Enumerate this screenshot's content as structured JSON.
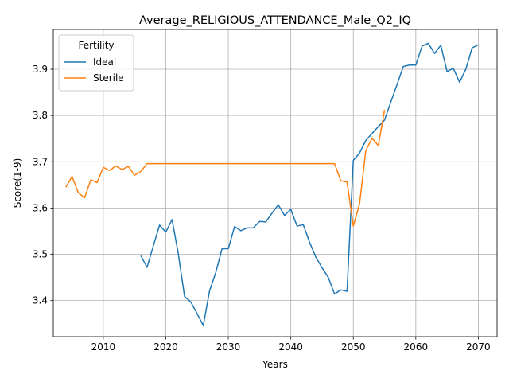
{
  "chart_data": {
    "type": "line",
    "title": "Average_RELIGIOUS_ATTENDANCE_Male_Q2_IQ",
    "xlabel": "Years",
    "ylabel": "Score(1-9)",
    "xlim": [
      2002,
      2073
    ],
    "ylim": [
      3.322,
      3.986
    ],
    "xticks": [
      2010,
      2020,
      2030,
      2040,
      2050,
      2060,
      2070
    ],
    "yticks": [
      3.4,
      3.5,
      3.6,
      3.7,
      3.8,
      3.9
    ],
    "ytick_labels": [
      "3.4",
      "3.5",
      "3.6",
      "3.7",
      "3.8",
      "3.9"
    ],
    "grid": true,
    "legend": {
      "title": "Fertility",
      "placement": "top-left"
    },
    "series": [
      {
        "name": "Ideal",
        "color": "#1f77b4",
        "x": [
          2016,
          2017,
          2018,
          2019,
          2020,
          2021,
          2022,
          2023,
          2024,
          2025,
          2026,
          2027,
          2028,
          2029,
          2030,
          2031,
          2032,
          2033,
          2034,
          2035,
          2036,
          2037,
          2038,
          2039,
          2040,
          2041,
          2042,
          2043,
          2044,
          2045,
          2046,
          2047,
          2048,
          2049,
          2050,
          2051,
          2052,
          2053,
          2054,
          2055,
          2056,
          2057,
          2058,
          2059,
          2060,
          2061,
          2062,
          2063,
          2064,
          2065,
          2066,
          2067,
          2068,
          2069,
          2070
        ],
        "y": [
          3.497,
          3.472,
          3.518,
          3.563,
          3.548,
          3.575,
          3.501,
          3.409,
          3.397,
          3.372,
          3.346,
          3.421,
          3.461,
          3.512,
          3.512,
          3.56,
          3.551,
          3.557,
          3.557,
          3.571,
          3.57,
          3.589,
          3.607,
          3.584,
          3.597,
          3.561,
          3.564,
          3.526,
          3.494,
          3.471,
          3.45,
          3.414,
          3.423,
          3.42,
          3.703,
          3.719,
          3.746,
          3.761,
          3.776,
          3.79,
          3.829,
          3.867,
          3.906,
          3.909,
          3.909,
          3.95,
          3.956,
          3.934,
          3.952,
          3.895,
          3.902,
          3.872,
          3.9,
          3.946,
          3.953
        ]
      },
      {
        "name": "Sterile",
        "color": "#ff7f0e",
        "x": [
          2004,
          2005,
          2006,
          2007,
          2008,
          2009,
          2010,
          2011,
          2012,
          2013,
          2014,
          2015,
          2016,
          2017,
          2018,
          2019,
          2020,
          2021,
          2022,
          2023,
          2024,
          2025,
          2026,
          2027,
          2028,
          2029,
          2030,
          2031,
          2032,
          2033,
          2034,
          2035,
          2036,
          2037,
          2038,
          2039,
          2040,
          2041,
          2042,
          2043,
          2044,
          2045,
          2046,
          2047,
          2048,
          2049,
          2050,
          2051,
          2052,
          2053,
          2054,
          2055
        ],
        "y": [
          3.645,
          3.668,
          3.633,
          3.622,
          3.661,
          3.655,
          3.688,
          3.681,
          3.691,
          3.683,
          3.69,
          3.671,
          3.679,
          3.696,
          3.696,
          3.696,
          3.696,
          3.696,
          3.696,
          3.696,
          3.696,
          3.696,
          3.696,
          3.696,
          3.696,
          3.696,
          3.696,
          3.696,
          3.696,
          3.696,
          3.696,
          3.696,
          3.696,
          3.696,
          3.696,
          3.696,
          3.696,
          3.696,
          3.696,
          3.696,
          3.696,
          3.696,
          3.696,
          3.696,
          3.659,
          3.656,
          3.561,
          3.609,
          3.724,
          3.751,
          3.735,
          3.812
        ]
      }
    ]
  }
}
